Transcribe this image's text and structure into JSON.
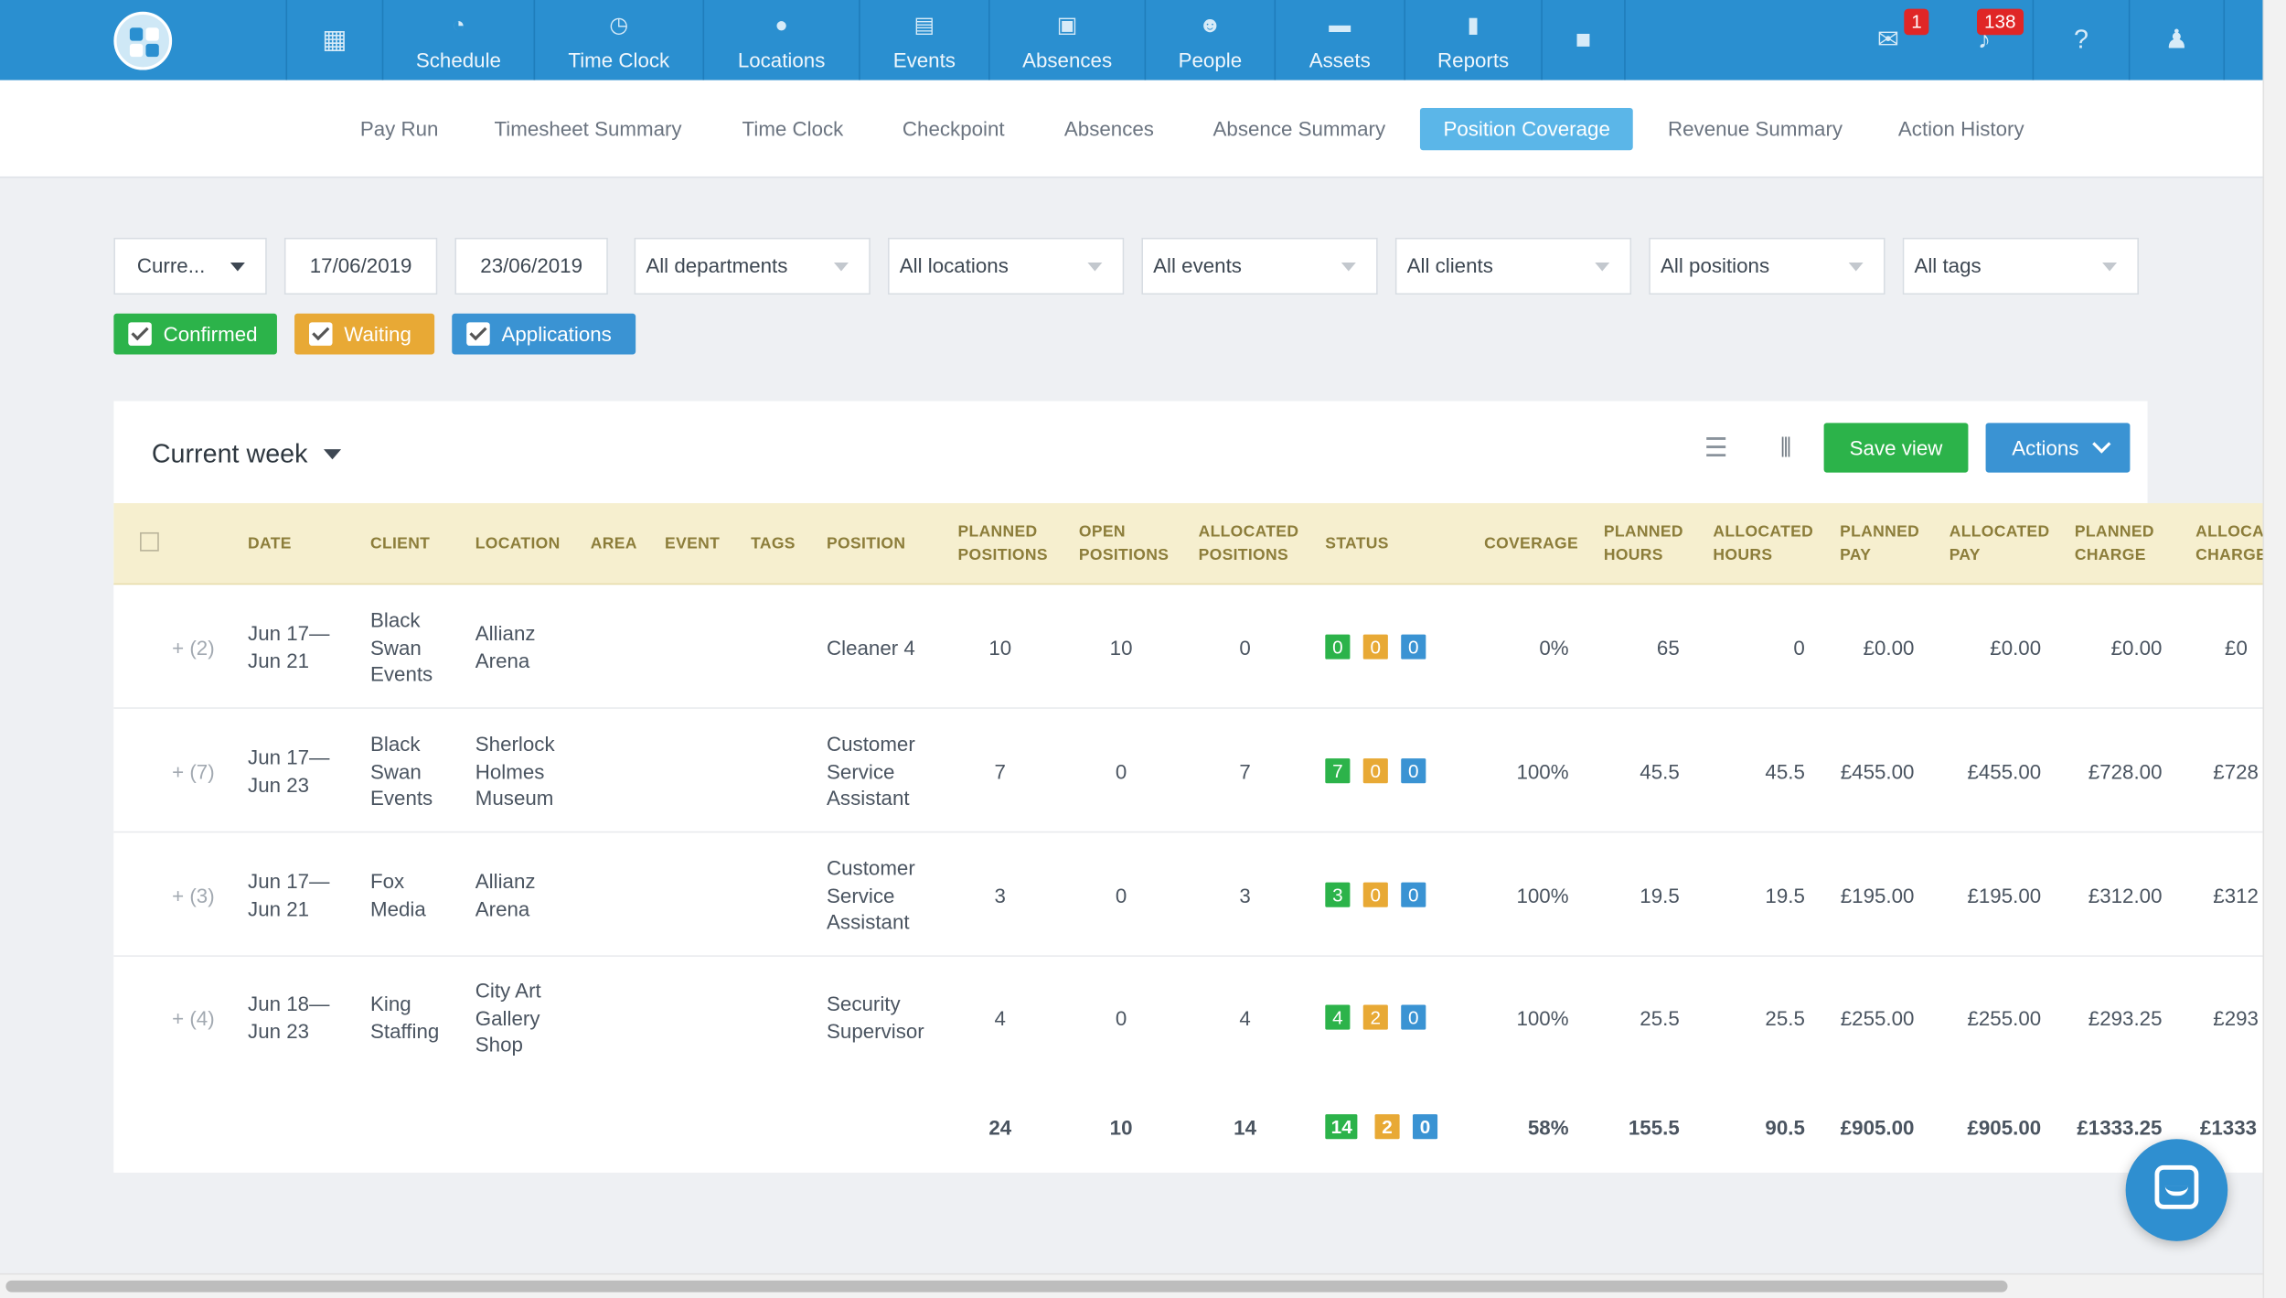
{
  "topnav": {
    "items": [
      {
        "label": "Schedule",
        "icon": "schedule-icon"
      },
      {
        "label": "Time Clock",
        "icon": "clock-icon"
      },
      {
        "label": "Locations",
        "icon": "location-pin-icon"
      },
      {
        "label": "Events",
        "icon": "calendar-icon"
      },
      {
        "label": "Absences",
        "icon": "absences-icon"
      },
      {
        "label": "People",
        "icon": "people-icon"
      },
      {
        "label": "Assets",
        "icon": "assets-icon"
      },
      {
        "label": "Reports",
        "icon": "bar-chart-icon"
      }
    ],
    "messages_badge": "1",
    "notifications_badge": "138"
  },
  "subnav": {
    "tabs": [
      "Pay Run",
      "Timesheet Summary",
      "Time Clock",
      "Checkpoint",
      "Absences",
      "Absence Summary",
      "Position Coverage",
      "Revenue Summary",
      "Action History"
    ],
    "active": "Position Coverage"
  },
  "filters": {
    "period": "Curre...",
    "date_from": "17/06/2019",
    "date_to": "23/06/2019",
    "departments": "All departments",
    "locations": "All locations",
    "events": "All events",
    "clients": "All clients",
    "positions": "All positions",
    "tags": "All tags"
  },
  "checkboxes": {
    "confirmed": "Confirmed",
    "waiting": "Waiting",
    "applications": "Applications"
  },
  "panel": {
    "week_label": "Current week",
    "save_view": "Save view",
    "actions": "Actions"
  },
  "columns": [
    "DATE",
    "CLIENT",
    "LOCATION",
    "AREA",
    "EVENT",
    "TAGS",
    "POSITION",
    "PLANNED POSITIONS",
    "OPEN POSITIONS",
    "ALLOCATED POSITIONS",
    "STATUS",
    "COVERAGE",
    "PLANNED HOURS",
    "ALLOCATED HOURS",
    "PLANNED PAY",
    "ALLOCATED PAY",
    "PLANNED CHARGE",
    "ALLOCATED CHARGE"
  ],
  "column_headers": {
    "date": "DATE",
    "client": "CLIENT",
    "location": "LOCATION",
    "area": "AREA",
    "event": "EVENT",
    "tags": "TAGS",
    "position": "POSITION",
    "planned_positions": [
      "PLANNED",
      "POSITIONS"
    ],
    "open_positions": [
      "OPEN",
      "POSITIONS"
    ],
    "allocated_positions": [
      "ALLOCATED",
      "POSITIONS"
    ],
    "status": "STATUS",
    "coverage": "COVERAGE",
    "planned_hours": [
      "PLANNED",
      "HOURS"
    ],
    "allocated_hours": [
      "ALLOCATED",
      "HOURS"
    ],
    "planned_pay": [
      "PLANNED",
      "PAY"
    ],
    "allocated_pay": [
      "ALLOCATED",
      "PAY"
    ],
    "planned_charge": [
      "PLANNED",
      "CHARGE"
    ],
    "allocated_charge": [
      "ALLOCATED",
      "CHARGE"
    ]
  },
  "rows": [
    {
      "expand": "+ (2)",
      "date": [
        "Jun 17—",
        "Jun 21"
      ],
      "client": [
        "Black",
        "Swan",
        "Events"
      ],
      "location": [
        "Allianz",
        "Arena"
      ],
      "position": [
        "Cleaner 4"
      ],
      "planned_positions": "10",
      "open_positions": "10",
      "allocated_positions": "0",
      "status": [
        "0",
        "0",
        "0"
      ],
      "coverage": "0%",
      "planned_hours": "65",
      "allocated_hours": "0",
      "planned_pay": "£0.00",
      "allocated_pay": "£0.00",
      "planned_charge": "£0.00",
      "allocated_charge": "£0"
    },
    {
      "expand": "+ (7)",
      "date": [
        "Jun 17—",
        "Jun 23"
      ],
      "client": [
        "Black",
        "Swan",
        "Events"
      ],
      "location": [
        "Sherlock",
        "Holmes",
        "Museum"
      ],
      "position": [
        "Customer",
        "Service",
        "Assistant"
      ],
      "planned_positions": "7",
      "open_positions": "0",
      "allocated_positions": "7",
      "status": [
        "7",
        "0",
        "0"
      ],
      "coverage": "100%",
      "planned_hours": "45.5",
      "allocated_hours": "45.5",
      "planned_pay": "£455.00",
      "allocated_pay": "£455.00",
      "planned_charge": "£728.00",
      "allocated_charge": "£728"
    },
    {
      "expand": "+ (3)",
      "date": [
        "Jun 17—",
        "Jun 21"
      ],
      "client": [
        "Fox",
        "Media"
      ],
      "location": [
        "Allianz",
        "Arena"
      ],
      "position": [
        "Customer",
        "Service",
        "Assistant"
      ],
      "planned_positions": "3",
      "open_positions": "0",
      "allocated_positions": "3",
      "status": [
        "3",
        "0",
        "0"
      ],
      "coverage": "100%",
      "planned_hours": "19.5",
      "allocated_hours": "19.5",
      "planned_pay": "£195.00",
      "allocated_pay": "£195.00",
      "planned_charge": "£312.00",
      "allocated_charge": "£312"
    },
    {
      "expand": "+ (4)",
      "date": [
        "Jun 18—",
        "Jun 23"
      ],
      "client": [
        "King",
        "Staffing"
      ],
      "location": [
        "City Art",
        "Gallery",
        "Shop"
      ],
      "position": [
        "Security",
        "Supervisor"
      ],
      "planned_positions": "4",
      "open_positions": "0",
      "allocated_positions": "4",
      "status": [
        "4",
        "2",
        "0"
      ],
      "coverage": "100%",
      "planned_hours": "25.5",
      "allocated_hours": "25.5",
      "planned_pay": "£255.00",
      "allocated_pay": "£255.00",
      "planned_charge": "£293.25",
      "allocated_charge": "£293"
    }
  ],
  "totals": {
    "planned_positions": "24",
    "open_positions": "10",
    "allocated_positions": "14",
    "status": [
      "14",
      "2",
      "0"
    ],
    "coverage": "58%",
    "planned_hours": "155.5",
    "allocated_hours": "90.5",
    "planned_pay": "£905.00",
    "allocated_pay": "£905.00",
    "planned_charge": "£1333.25",
    "allocated_charge": "£1333"
  },
  "colors": {
    "nav_blue": "#2a8fd0",
    "confirmed_green": "#2cb34a",
    "waiting_orange": "#e8a935",
    "applications_blue": "#3a93d3",
    "header_bg": "#f6efcf",
    "header_text": "#8c7d3a"
  }
}
